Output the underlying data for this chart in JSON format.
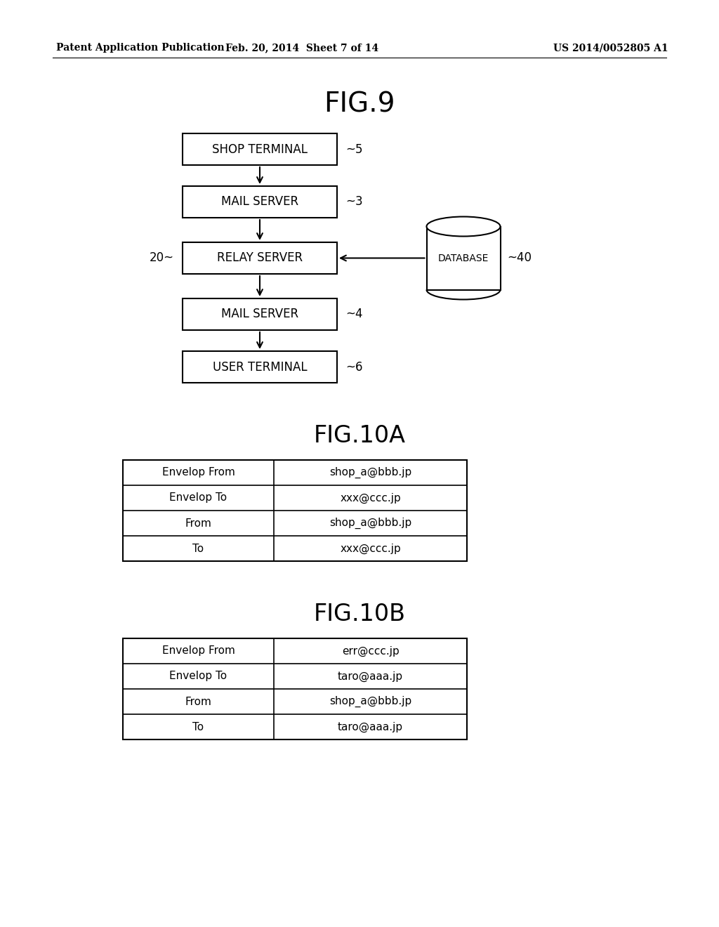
{
  "header_left": "Patent Application Publication",
  "header_mid": "Feb. 20, 2014  Sheet 7 of 14",
  "header_right": "US 2014/0052805 A1",
  "fig9_title": "FIG.9",
  "fig10a_title": "FIG.10A",
  "fig10b_title": "FIG.10B",
  "fig10a_rows": [
    [
      "Envelop From",
      "shop_a@bbb.jp"
    ],
    [
      "Envelop To",
      "xxx@ccc.jp"
    ],
    [
      "From",
      "shop_a@bbb.jp"
    ],
    [
      "To",
      "xxx@ccc.jp"
    ]
  ],
  "fig10b_rows": [
    [
      "Envelop From",
      "err@ccc.jp"
    ],
    [
      "Envelop To",
      "taro@aaa.jp"
    ],
    [
      "From",
      "shop_a@bbb.jp"
    ],
    [
      "To",
      "taro@aaa.jp"
    ]
  ],
  "bg_color": "#ffffff",
  "text_color": "#000000"
}
